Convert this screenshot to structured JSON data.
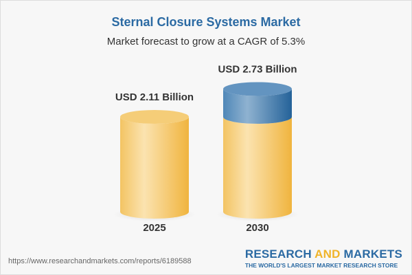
{
  "title": "Sternal Closure Systems Market",
  "subtitle": "Market forecast to grow at a CAGR of 5.3%",
  "chart_data": {
    "type": "bar",
    "style": "3d-cylinder",
    "categories": [
      "2025",
      "2030"
    ],
    "values": [
      2.11,
      2.73
    ],
    "data_labels": [
      "USD 2.11 Billion",
      "USD 2.73 Billion"
    ],
    "unit": "USD Billion",
    "cagr": "5.3%",
    "colors": {
      "base": "#f3c463",
      "growth": "#4a82b4"
    },
    "grid": false
  },
  "footer": {
    "url": "https://www.researchandmarkets.com/reports/6189588",
    "logo_part1": "RESEARCH ",
    "logo_part2": "AND",
    "logo_part3": " MARKETS",
    "tagline": "THE WORLD'S LARGEST MARKET RESEARCH STORE"
  }
}
